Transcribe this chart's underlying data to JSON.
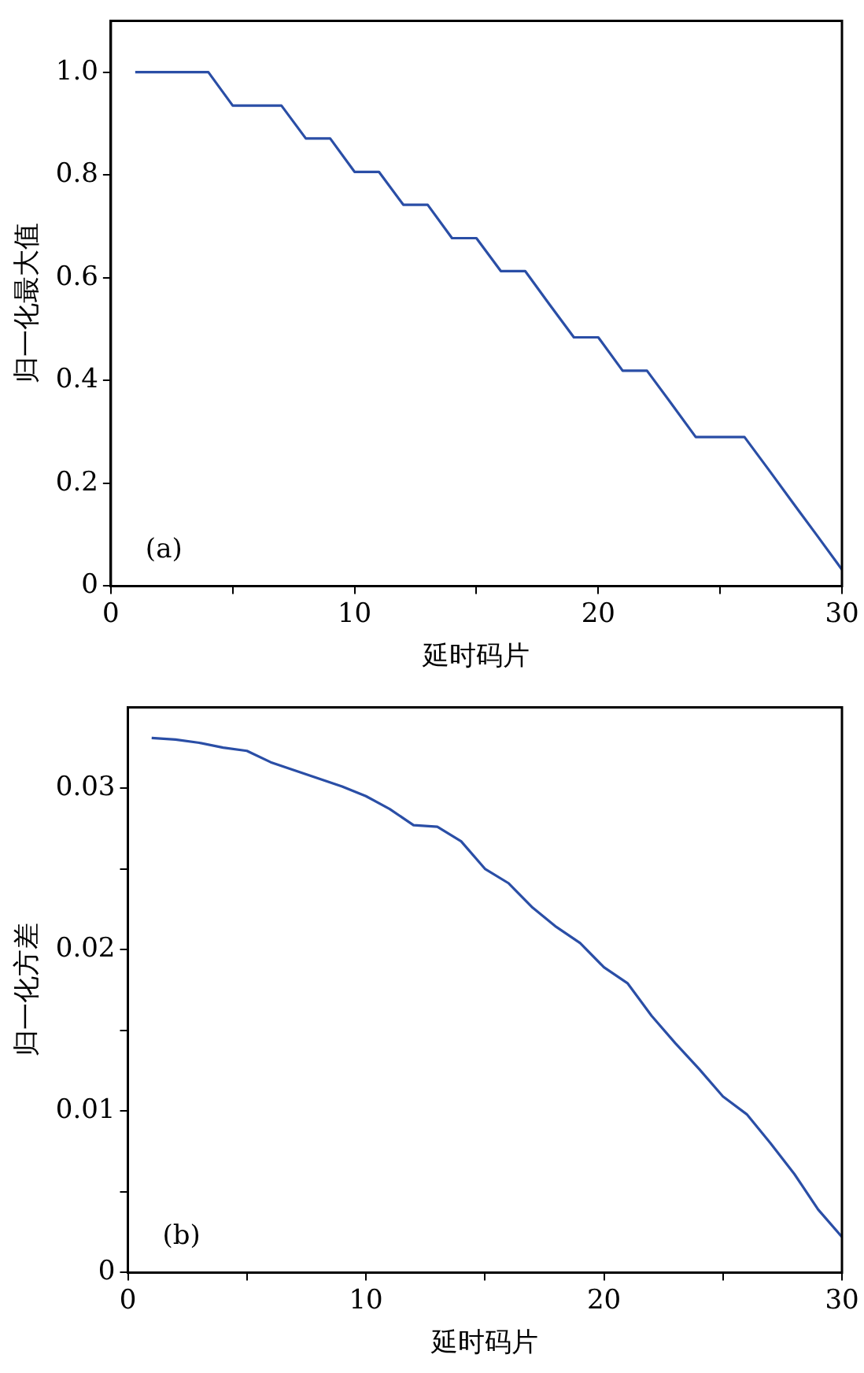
{
  "chart_data": [
    {
      "type": "line",
      "xlabel": "延时码片",
      "ylabel": "归一化最大值",
      "annotations": [
        "(a)"
      ],
      "grid": false,
      "legend": false,
      "marker": "none",
      "line_style": "solid",
      "x": [
        1,
        2,
        3,
        4,
        5,
        6,
        7,
        8,
        9,
        10,
        11,
        12,
        13,
        14,
        15,
        16,
        17,
        18,
        19,
        20,
        21,
        22,
        23,
        24,
        25,
        26,
        27,
        28,
        29,
        30
      ],
      "series": [
        {
          "color": "#2a4ea6",
          "values": [
            1,
            1,
            1,
            1,
            0.935,
            0.935,
            0.935,
            0.871,
            0.871,
            0.806,
            0.806,
            0.742,
            0.742,
            0.677,
            0.677,
            0.613,
            0.613,
            0.548,
            0.484,
            0.484,
            0.419,
            0.419,
            0.355,
            0.29,
            0.29,
            0.29,
            0.226,
            0.161,
            0.097,
            0.032
          ]
        }
      ],
      "xlim": [
        0,
        30
      ],
      "xticks": [
        0,
        {
          "value": 5,
          "label": null
        },
        10,
        {
          "value": 15,
          "label": null
        },
        20,
        {
          "value": 25,
          "label": null
        },
        30
      ],
      "ylim": [
        0,
        1.1
      ],
      "yticks": [
        0,
        0.2,
        0.4,
        0.6,
        0.8,
        {
          "value": 1,
          "label": "1.0"
        }
      ]
    },
    {
      "type": "line",
      "xlabel": "延时码片",
      "ylabel": "归一化方差",
      "annotations": [
        "(b)"
      ],
      "grid": false,
      "legend": false,
      "marker": "none",
      "line_style": "solid",
      "x": [
        1,
        2,
        3,
        4,
        5,
        6,
        7,
        8,
        9,
        10,
        11,
        12,
        13,
        14,
        15,
        16,
        17,
        18,
        19,
        20,
        21,
        22,
        23,
        24,
        25,
        26,
        27,
        28,
        29,
        30
      ],
      "series": [
        {
          "color": "#2a4ea6",
          "values": [
            0.0331,
            0.033,
            0.0328,
            0.0325,
            0.0323,
            0.0316,
            0.0311,
            0.0306,
            0.0301,
            0.0295,
            0.0287,
            0.0277,
            0.0276,
            0.0267,
            0.025,
            0.0241,
            0.0226,
            0.0214,
            0.0204,
            0.0189,
            0.0179,
            0.0159,
            0.0142,
            0.0126,
            0.0109,
            0.0098,
            0.008,
            0.0061,
            0.0039,
            0.0022
          ]
        }
      ],
      "xlim": [
        0,
        30
      ],
      "xticks": [
        0,
        {
          "value": 5,
          "label": null
        },
        10,
        {
          "value": 15,
          "label": null
        },
        20,
        {
          "value": 25,
          "label": null
        },
        30
      ],
      "ylim": [
        0,
        0.035
      ],
      "yticks": [
        0,
        {
          "value": 0.005,
          "label": null
        },
        0.01,
        {
          "value": 0.015,
          "label": null
        },
        0.02,
        {
          "value": 0.025,
          "label": null
        },
        0.03
      ]
    }
  ]
}
